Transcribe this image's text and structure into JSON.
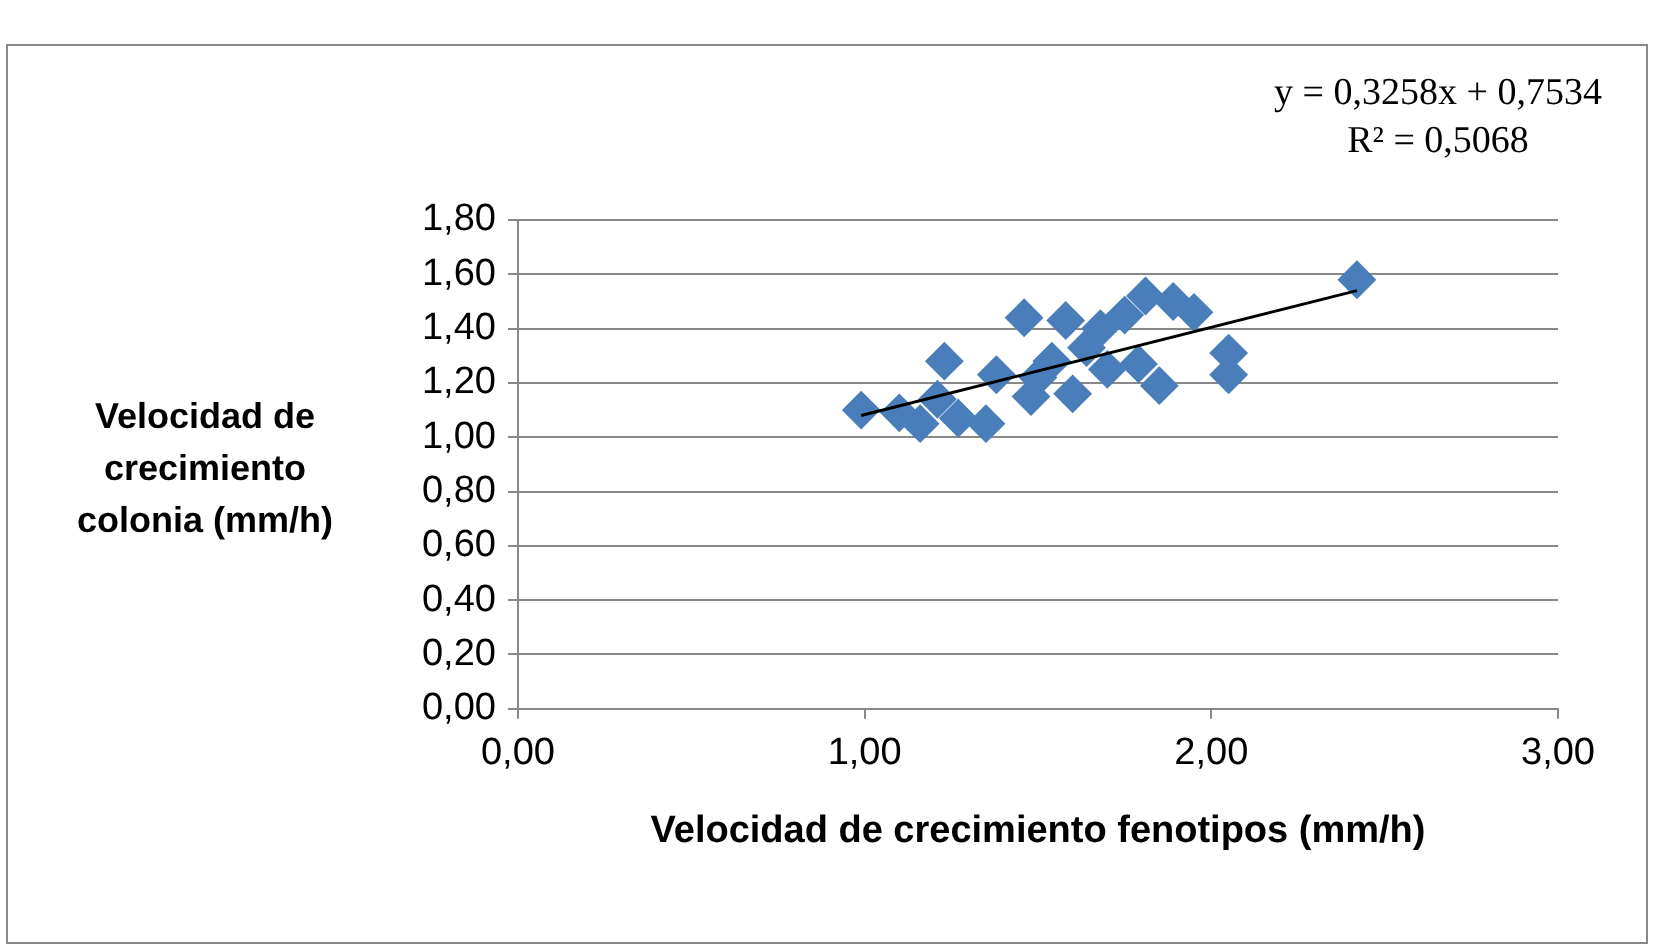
{
  "chart_data": {
    "type": "scatter",
    "xlabel": "Velocidad de crecimiento fenotipos (mm/h)",
    "ylabel": "Velocidad de crecimiento colonia (mm/h)",
    "annotations": [
      "y = 0,3258x + 0,7534",
      "R² = 0,5068"
    ],
    "xlim": [
      0,
      3
    ],
    "xticks": [
      {
        "value": 0,
        "label": "0,00"
      },
      {
        "value": 1,
        "label": "1,00"
      },
      {
        "value": 2,
        "label": "2,00"
      },
      {
        "value": 3,
        "label": "3,00"
      }
    ],
    "ylim": [
      0,
      1.8
    ],
    "yticks": [
      {
        "value": 0,
        "label": "0,00"
      },
      {
        "value": 0.2,
        "label": "0,20"
      },
      {
        "value": 0.4,
        "label": "0,40"
      },
      {
        "value": 0.6,
        "label": "0,60"
      },
      {
        "value": 0.8,
        "label": "0,80"
      },
      {
        "value": 1,
        "label": "1,00"
      },
      {
        "value": 1.2,
        "label": "1,20"
      },
      {
        "value": 1.4,
        "label": "1,40"
      },
      {
        "value": 1.6,
        "label": "1,60"
      },
      {
        "value": 1.8,
        "label": "1,80"
      }
    ],
    "grid": "y",
    "marker": "diamond",
    "series": [
      {
        "color": "#4a7ebb",
        "x": [
          0.99,
          1.1,
          1.16,
          1.21,
          1.23,
          1.27,
          1.35,
          1.38,
          1.46,
          1.48,
          1.5,
          1.54,
          1.58,
          1.6,
          1.64,
          1.68,
          1.69,
          1.7,
          1.75,
          1.78,
          1.79,
          1.81,
          1.85,
          1.89,
          1.95,
          2.05,
          2.05,
          2.42
        ],
        "values": [
          1.1,
          1.09,
          1.05,
          1.14,
          1.28,
          1.07,
          1.05,
          1.23,
          1.44,
          1.15,
          1.22,
          1.28,
          1.43,
          1.16,
          1.33,
          1.4,
          null,
          1.25,
          1.45,
          null,
          1.27,
          1.52,
          1.19,
          1.5,
          1.46,
          1.31,
          1.23,
          1.58
        ]
      },
      {
        "type": "line",
        "color": "#000000",
        "marker": "none",
        "x": [
          0.99,
          2.42
        ],
        "values": [
          1.08,
          1.54
        ]
      }
    ]
  }
}
